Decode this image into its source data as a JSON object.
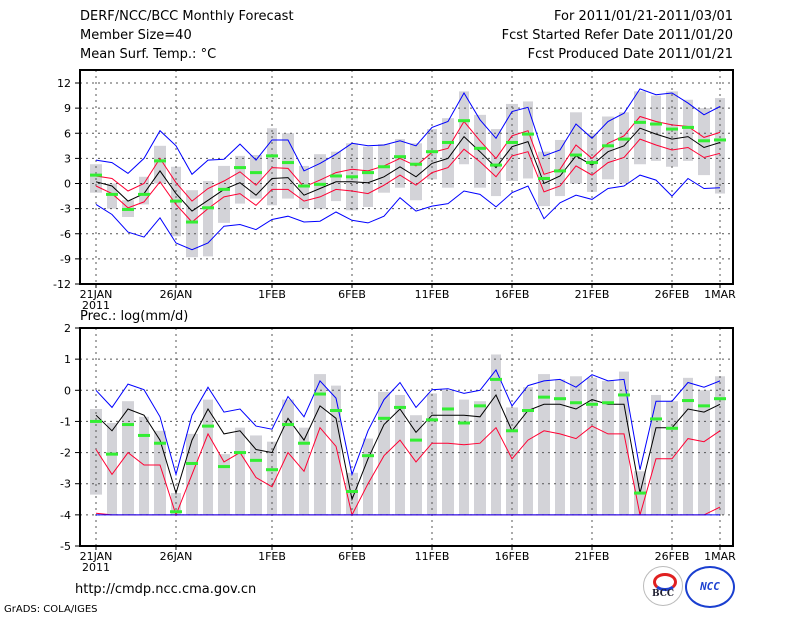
{
  "header": {
    "title": "DERF/NCC/BCC Monthly Forecast",
    "member_size": "Member Size=40",
    "variable": "Mean Surf. Temp.: °C",
    "period": "For 2011/01/21-2011/03/01",
    "started": "Fcst Started Refer Date 2011/01/20",
    "produced": "Fcst Produced Date 2011/01/21"
  },
  "footer": {
    "url": "http://cmdp.ncc.cma.gov.cn",
    "grads": "GrADS: COLA/IGES",
    "logo_bcc": "BCC",
    "logo_ncc": "NCC"
  },
  "colors": {
    "mean": "#000000",
    "red": "#ff0033",
    "blue": "#0000ff",
    "obs": "#33ee33",
    "range": "#d3d3d8"
  },
  "chart_data": [
    {
      "type": "line",
      "title": "Mean Surf. Temp.: °C",
      "x_ticks": [
        "21JAN",
        "26JAN",
        "1FEB",
        "6FEB",
        "11FEB",
        "16FEB",
        "21FEB",
        "26FEB",
        "1MAR"
      ],
      "x_tick_days": [
        0,
        5,
        11,
        16,
        21,
        26,
        31,
        36,
        39
      ],
      "x_year": "2011",
      "ylim": [
        -12,
        12
      ],
      "y_ticks": [
        "12",
        "9",
        "6",
        "3",
        "0",
        "-3",
        "-6",
        "-9",
        "-12"
      ],
      "y_tick_values": [
        12,
        9,
        6,
        3,
        0,
        -3,
        -6,
        -9,
        -12
      ],
      "grid": true,
      "series": [
        {
          "name": "ensemble-mean",
          "color": "#000000",
          "values": [
            0.2,
            -0.3,
            -2.1,
            -1.2,
            1.5,
            -1.2,
            -3.3,
            -2.0,
            -0.7,
            0.1,
            -1.4,
            0.6,
            0.7,
            -1.4,
            -0.6,
            0.2,
            0.2,
            0.1,
            0.8,
            2.0,
            0.8,
            2.4,
            3.0,
            5.6,
            3.8,
            1.9,
            4.4,
            5.0,
            0.0,
            0.9,
            3.3,
            2.2,
            3.8,
            4.5,
            6.6,
            5.9,
            5.3,
            5.6,
            4.3,
            4.9
          ]
        },
        {
          "name": "upper-red",
          "color": "#ff0033",
          "values": [
            0.9,
            0.6,
            -0.9,
            0.0,
            3.0,
            0.1,
            -2.1,
            -0.6,
            0.3,
            1.4,
            -0.2,
            1.9,
            1.8,
            -0.4,
            0.4,
            1.3,
            1.7,
            1.5,
            2.1,
            3.0,
            2.1,
            3.7,
            4.2,
            7.4,
            5.1,
            3.0,
            5.7,
            6.3,
            1.1,
            1.7,
            4.6,
            3.0,
            4.8,
            5.7,
            8.0,
            7.4,
            7.0,
            6.8,
            5.5,
            6.1
          ]
        },
        {
          "name": "lower-red",
          "color": "#ff0033",
          "values": [
            -0.3,
            -1.2,
            -2.9,
            -2.2,
            0.2,
            -2.5,
            -4.6,
            -3.0,
            -1.6,
            -1.2,
            -2.6,
            -0.7,
            -0.7,
            -2.1,
            -1.6,
            -0.7,
            -0.9,
            -1.2,
            -0.2,
            1.0,
            -0.2,
            1.3,
            1.9,
            4.1,
            2.6,
            0.8,
            3.3,
            3.8,
            -1.0,
            -0.3,
            2.1,
            1.0,
            2.5,
            3.1,
            5.3,
            4.6,
            4.0,
            4.3,
            3.1,
            3.6
          ]
        },
        {
          "name": "max-blue",
          "color": "#0000ff",
          "values": [
            2.8,
            2.5,
            1.2,
            3.0,
            6.3,
            4.5,
            1.1,
            2.8,
            2.9,
            4.7,
            2.8,
            5.2,
            5.2,
            1.5,
            2.4,
            3.5,
            4.8,
            4.5,
            4.6,
            5.1,
            4.5,
            6.7,
            7.4,
            10.8,
            7.6,
            5.4,
            8.6,
            9.1,
            3.3,
            4.0,
            7.1,
            5.4,
            7.4,
            8.4,
            11.3,
            10.6,
            10.8,
            9.6,
            8.2,
            9.2
          ]
        },
        {
          "name": "min-blue",
          "color": "#0000ff",
          "values": [
            -2.5,
            -3.7,
            -5.8,
            -6.4,
            -4.1,
            -7.1,
            -7.9,
            -7.1,
            -5.1,
            -4.9,
            -5.5,
            -4.3,
            -3.9,
            -4.6,
            -4.5,
            -3.4,
            -4.4,
            -4.7,
            -3.9,
            -1.7,
            -3.3,
            -2.7,
            -2.4,
            -0.9,
            -1.3,
            -2.8,
            -1.1,
            -0.3,
            -4.2,
            -2.3,
            -1.4,
            -1.9,
            -0.6,
            -0.3,
            1.0,
            0.4,
            -1.5,
            0.6,
            -0.6,
            -0.5
          ]
        },
        {
          "name": "observed-green",
          "color": "#33ee33",
          "values": [
            1.0,
            -1.3,
            -3.1,
            -1.3,
            2.7,
            -2.1,
            -4.6,
            -2.9,
            -0.7,
            1.9,
            1.3,
            3.3,
            2.5,
            -0.3,
            -0.1,
            0.9,
            0.8,
            1.3,
            2.0,
            3.2,
            2.3,
            3.8,
            4.9,
            7.5,
            4.2,
            2.2,
            4.9,
            5.9,
            0.6,
            1.5,
            3.4,
            2.5,
            4.5,
            5.3,
            7.3,
            7.1,
            6.5,
            6.7,
            5.1,
            5.2
          ]
        }
      ],
      "range_low": [
        -1.1,
        -3.0,
        -4.0,
        -2.5,
        0.0,
        -6.3,
        -8.8,
        -8.7,
        -4.7,
        -2.4,
        -1.8,
        -2.6,
        -1.8,
        -3.0,
        -3.0,
        -2.1,
        -3.2,
        -2.8,
        -1.1,
        -0.5,
        -2.0,
        0.5,
        -0.5,
        2.3,
        -0.5,
        -1.5,
        0.3,
        0.6,
        -2.7,
        -1.5,
        0.0,
        -1.0,
        0.5,
        0.0,
        2.3,
        2.7,
        2.0,
        2.7,
        1.0,
        -1.2
      ],
      "range_high": [
        2.3,
        0.0,
        -2.0,
        0.8,
        4.5,
        2.0,
        -0.8,
        0.3,
        2.1,
        3.3,
        3.4,
        6.6,
        6.0,
        2.1,
        3.5,
        3.8,
        4.8,
        4.4,
        4.7,
        5.3,
        4.8,
        6.5,
        7.8,
        11.0,
        8.2,
        6.5,
        9.5,
        9.8,
        3.8,
        5.2,
        8.5,
        6.0,
        8.0,
        8.5,
        11.0,
        10.5,
        11.0,
        10.0,
        9.0,
        10.2
      ]
    },
    {
      "type": "line",
      "title": "Prec.: log(mm/d)",
      "x_ticks": [
        "21JAN",
        "26JAN",
        "1FEB",
        "6FEB",
        "11FEB",
        "16FEB",
        "21FEB",
        "26FEB",
        "1MAR"
      ],
      "x_tick_days": [
        0,
        5,
        11,
        16,
        21,
        26,
        31,
        36,
        39
      ],
      "x_year": "2011",
      "ylim": [
        -5,
        2
      ],
      "y_ticks": [
        "2",
        "1",
        "0",
        "-1",
        "-2",
        "-3",
        "-4",
        "-5"
      ],
      "y_tick_values": [
        2,
        1,
        0,
        -1,
        -2,
        -3,
        -4,
        -5
      ],
      "grid": true,
      "series": [
        {
          "name": "ensemble-mean",
          "color": "#000000",
          "values": [
            -0.8,
            -1.3,
            -0.6,
            -0.8,
            -1.6,
            -3.3,
            -1.6,
            -0.6,
            -1.4,
            -1.3,
            -1.9,
            -2.0,
            -0.9,
            -1.6,
            -0.5,
            -0.9,
            -3.5,
            -2.2,
            -1.1,
            -0.6,
            -1.35,
            -0.8,
            -0.8,
            -0.8,
            -0.85,
            -0.15,
            -1.3,
            -0.65,
            -0.45,
            -0.45,
            -0.6,
            -0.3,
            -0.45,
            -0.45,
            -3.3,
            -1.2,
            -1.2,
            -0.6,
            -0.7,
            -0.45
          ]
        },
        {
          "name": "upper-red",
          "color": "#ff0033",
          "values": [
            -1.9,
            -2.7,
            -2.0,
            -2.4,
            -2.4,
            -4.0,
            -2.7,
            -1.4,
            -2.3,
            -2.0,
            -2.8,
            -3.1,
            -2.0,
            -2.6,
            -1.2,
            -1.8,
            -4.0,
            -3.0,
            -2.1,
            -1.6,
            -2.3,
            -1.7,
            -1.7,
            -1.75,
            -1.7,
            -1.2,
            -2.2,
            -1.6,
            -1.3,
            -1.4,
            -1.55,
            -1.15,
            -1.4,
            -1.4,
            -4.0,
            -2.2,
            -2.2,
            -1.55,
            -1.65,
            -1.3
          ]
        },
        {
          "name": "lower-red",
          "color": "#ff0033",
          "values": [
            -3.95,
            -4,
            -4,
            -4,
            -4,
            -4,
            -4,
            -4,
            -4,
            -4,
            -4,
            -4,
            -4,
            -4,
            -4,
            -4,
            -4,
            -4,
            -4,
            -4,
            -4,
            -4,
            -4,
            -4,
            -4,
            -4,
            -4,
            -4,
            -4,
            -4,
            -4,
            -4,
            -4,
            -4,
            -4,
            -4,
            -4,
            -4,
            -4,
            -3.75
          ]
        },
        {
          "name": "max-blue",
          "color": "#0000ff",
          "values": [
            0.0,
            -0.55,
            0.2,
            0.02,
            -0.85,
            -2.7,
            -0.8,
            0.1,
            -0.7,
            -0.6,
            -1.15,
            -1.25,
            -0.2,
            -0.85,
            0.3,
            -0.25,
            -2.7,
            -1.3,
            -0.3,
            0.25,
            -0.55,
            0.02,
            0.05,
            -0.1,
            0.0,
            0.65,
            -0.5,
            0.15,
            0.3,
            0.35,
            0.1,
            0.5,
            0.3,
            0.35,
            -2.55,
            -0.35,
            -0.35,
            0.25,
            0.1,
            0.3
          ]
        },
        {
          "name": "min-blue",
          "color": "#0000ff",
          "values": [
            -4,
            -4,
            -4,
            -4,
            -4,
            -4,
            -4,
            -4,
            -4,
            -4,
            -4,
            -4,
            -4,
            -4,
            -4,
            -4,
            -4,
            -4,
            -4,
            -4,
            -4,
            -4,
            -4,
            -4,
            -4,
            -4,
            -4,
            -4,
            -4,
            -4,
            -4,
            -4,
            -4,
            -4,
            -4,
            -4,
            -4,
            -4,
            -4,
            -4
          ]
        },
        {
          "name": "observed-green",
          "color": "#33ee33",
          "values": [
            -1.0,
            -2.05,
            -1.1,
            -1.45,
            -1.7,
            -3.9,
            -2.35,
            -1.15,
            -2.45,
            -2.0,
            -2.25,
            -2.55,
            -1.1,
            -1.7,
            -0.12,
            -0.65,
            -3.25,
            -2.1,
            -0.9,
            -0.55,
            -1.6,
            -0.95,
            -0.6,
            -1.05,
            -0.5,
            0.35,
            -1.3,
            -0.65,
            -0.22,
            -0.27,
            -0.4,
            -0.45,
            -0.4,
            -0.15,
            -3.3,
            -0.92,
            -1.22,
            -0.33,
            -0.5,
            -0.27
          ]
        },
        {
          "name": "floor-red-start",
          "color": "#ff0033",
          "values": []
        }
      ],
      "range_low": [
        -3.35,
        -4,
        -4,
        -4,
        -4,
        -4,
        -4,
        -4,
        -4,
        -4,
        -4,
        -4,
        -4,
        -4,
        -4,
        -4,
        -4,
        -4,
        -4,
        -4,
        -4,
        -4,
        -4,
        -4,
        -4,
        -4,
        -4,
        -4,
        -4,
        -4,
        -4,
        -4,
        -4,
        -4,
        -4,
        -4,
        -4,
        -4,
        -4,
        -4
      ],
      "range_high": [
        -0.6,
        -1.05,
        -0.35,
        -0.85,
        -1.3,
        -3.3,
        -1.4,
        -0.3,
        -2.05,
        -1.2,
        -1.45,
        -1.65,
        -0.3,
        -1.2,
        0.52,
        0.15,
        -2.65,
        -1.55,
        -0.05,
        -0.15,
        -0.8,
        -0.1,
        0.0,
        -0.3,
        -0.35,
        1.15,
        -0.55,
        0.1,
        0.52,
        0.35,
        0.45,
        0.4,
        0.3,
        0.6,
        -2.6,
        -0.15,
        -0.35,
        0.4,
        0.0,
        0.45
      ]
    }
  ]
}
